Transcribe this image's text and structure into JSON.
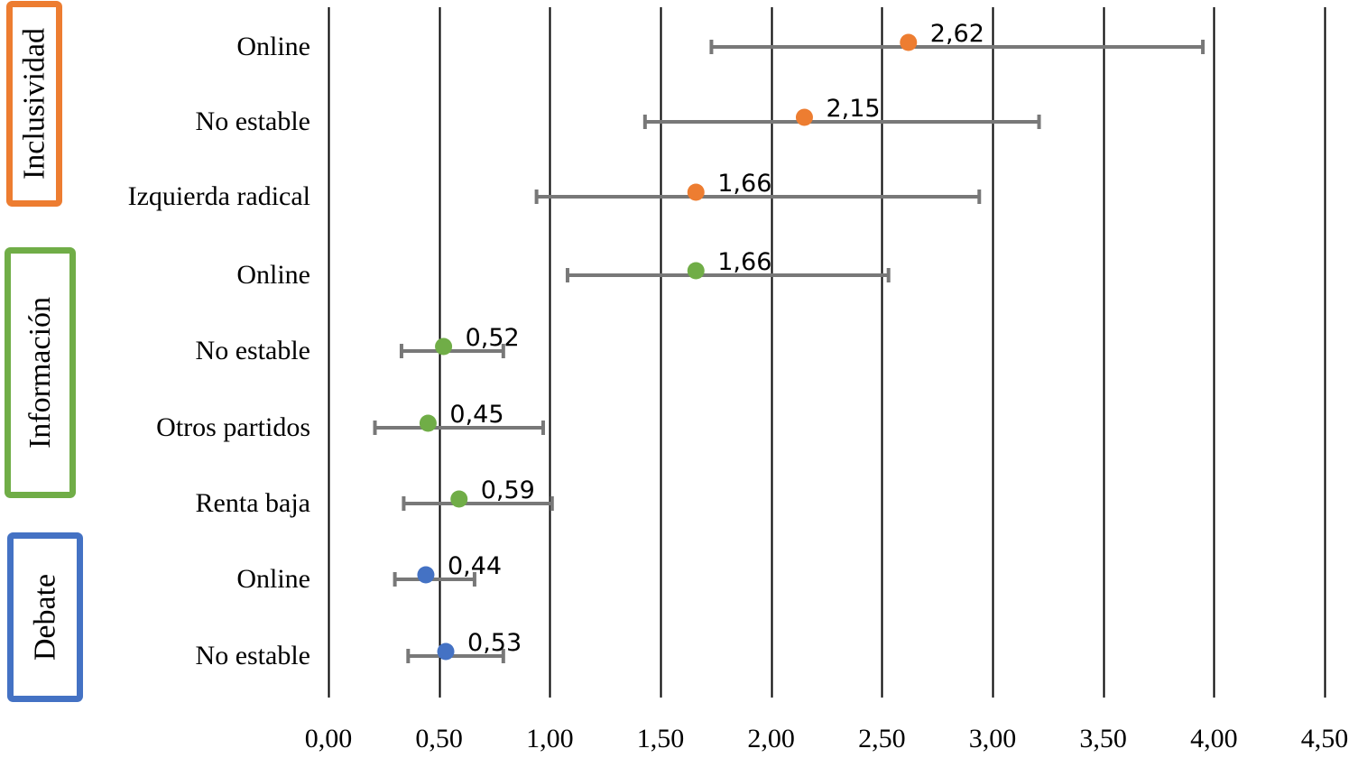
{
  "chart_data": {
    "type": "scatter",
    "subtype": "dot-plot-with-error-bars",
    "orientation": "horizontal",
    "title": "",
    "xlabel": "",
    "ylabel": "",
    "xlim": [
      0,
      4.5
    ],
    "x_ticks": [
      0,
      0.5,
      1,
      1.5,
      2,
      2.5,
      3,
      3.5,
      4,
      4.5
    ],
    "x_tick_labels": [
      "0,00",
      "0,50",
      "1,00",
      "1,50",
      "2,00",
      "2,50",
      "3,00",
      "3,50",
      "4,00",
      "4,50"
    ],
    "grid": "vertical",
    "legend": "none",
    "groups": [
      {
        "name": "Inclusividad",
        "color": "#ED7D31",
        "rows": [
          {
            "category": "Online",
            "value": 2.62,
            "label": "2,62",
            "ci_low": 1.73,
            "ci_high": 3.95
          },
          {
            "category": "No estable",
            "value": 2.15,
            "label": "2,15",
            "ci_low": 1.43,
            "ci_high": 3.21
          },
          {
            "category": "Izquierda radical",
            "value": 1.66,
            "label": "1,66",
            "ci_low": 0.94,
            "ci_high": 2.94
          }
        ]
      },
      {
        "name": "Información",
        "color": "#70AD47",
        "rows": [
          {
            "category": "Online",
            "value": 1.66,
            "label": "1,66",
            "ci_low": 1.08,
            "ci_high": 2.53
          },
          {
            "category": "No estable",
            "value": 0.52,
            "label": "0,52",
            "ci_low": 0.33,
            "ci_high": 0.79
          },
          {
            "category": "Otros partidos",
            "value": 0.45,
            "label": "0,45",
            "ci_low": 0.21,
            "ci_high": 0.97
          },
          {
            "category": "Renta baja",
            "value": 0.59,
            "label": "0,59",
            "ci_low": 0.34,
            "ci_high": 1.01
          }
        ]
      },
      {
        "name": "Debate",
        "color": "#4472C4",
        "rows": [
          {
            "category": "Online",
            "value": 0.44,
            "label": "0,44",
            "ci_low": 0.3,
            "ci_high": 0.66
          },
          {
            "category": "No estable",
            "value": 0.53,
            "label": "0,53",
            "ci_low": 0.36,
            "ci_high": 0.79
          }
        ]
      }
    ],
    "error_bar_color": "#787878"
  }
}
